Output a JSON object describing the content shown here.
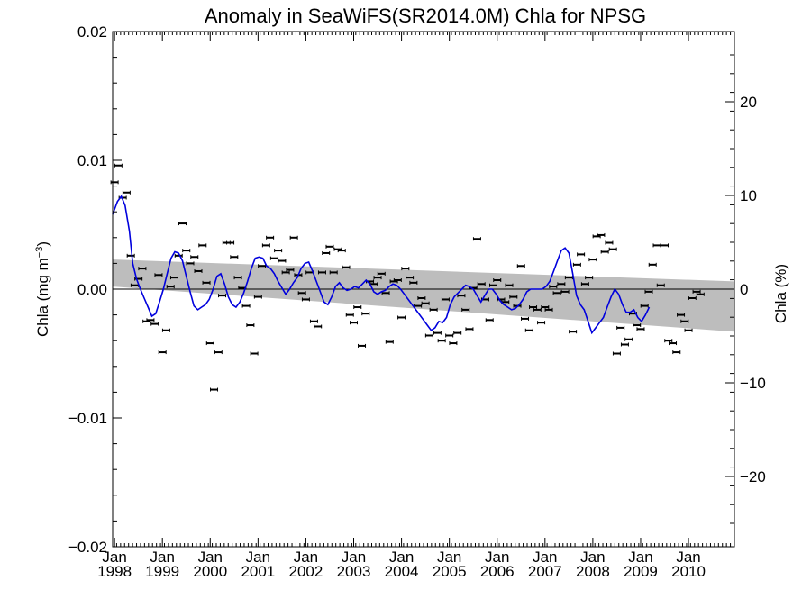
{
  "chart_data": {
    "type": "scatter",
    "title": "Anomaly in SeaWiFS(SR2014.0M) Chla for NPSG",
    "ylabel_left": {
      "base": "Chla (mg m",
      "sup": "−3",
      "close": ")"
    },
    "ylabel_right": "Chla (%)",
    "xlim": [
      1998.0,
      2011.0
    ],
    "ylim": [
      -0.02,
      0.02
    ],
    "ylim_right": [
      -27.5,
      27.5
    ],
    "left_ticks": [
      {
        "value": 0.02,
        "label": "0.02"
      },
      {
        "value": 0.01,
        "label": "0.01"
      },
      {
        "value": 0.0,
        "label": "0.00"
      },
      {
        "value": -0.01,
        "label": "−0.01"
      },
      {
        "value": -0.02,
        "label": "−0.02"
      }
    ],
    "right_ticks": [
      {
        "value": 20,
        "label": "20"
      },
      {
        "value": 10,
        "label": "10"
      },
      {
        "value": 0,
        "label": "0"
      },
      {
        "value": -10,
        "label": "−10"
      },
      {
        "value": -20,
        "label": "−20"
      }
    ],
    "x_ticks": [
      {
        "value": 1998.04,
        "month": "Jan",
        "year": "1998"
      },
      {
        "value": 1999.04,
        "month": "Jan",
        "year": "1999"
      },
      {
        "value": 2000.04,
        "month": "Jan",
        "year": "2000"
      },
      {
        "value": 2001.04,
        "month": "Jan",
        "year": "2001"
      },
      {
        "value": 2002.04,
        "month": "Jan",
        "year": "2002"
      },
      {
        "value": 2003.04,
        "month": "Jan",
        "year": "2003"
      },
      {
        "value": 2004.04,
        "month": "Jan",
        "year": "2004"
      },
      {
        "value": 2005.04,
        "month": "Jan",
        "year": "2005"
      },
      {
        "value": 2006.04,
        "month": "Jan",
        "year": "2006"
      },
      {
        "value": 2007.04,
        "month": "Jan",
        "year": "2007"
      },
      {
        "value": 2008.04,
        "month": "Jan",
        "year": "2008"
      },
      {
        "value": 2009.04,
        "month": "Jan",
        "year": "2009"
      },
      {
        "value": 2010.04,
        "month": "Jan",
        "year": "2010"
      }
    ],
    "zero_line": 0.0,
    "trend_band": {
      "x": [
        1998.0,
        2011.0
      ],
      "upper": [
        0.0023,
        0.0006
      ],
      "lower": [
        0.0002,
        -0.0033
      ]
    },
    "points": [
      [
        1998.04,
        0.0083
      ],
      [
        1998.12,
        0.0096
      ],
      [
        1998.21,
        0.0071
      ],
      [
        1998.29,
        0.0075
      ],
      [
        1998.38,
        0.0026
      ],
      [
        1998.46,
        0.0003
      ],
      [
        1998.54,
        0.0008
      ],
      [
        1998.62,
        0.0016
      ],
      [
        1998.71,
        -0.0025
      ],
      [
        1998.79,
        -0.0024
      ],
      [
        1998.88,
        -0.0027
      ],
      [
        1998.96,
        0.0011
      ],
      [
        1999.04,
        -0.0049
      ],
      [
        1999.12,
        -0.0032
      ],
      [
        1999.21,
        0.0002
      ],
      [
        1999.29,
        0.0009
      ],
      [
        1999.38,
        0.0026
      ],
      [
        1999.46,
        0.0051
      ],
      [
        1999.54,
        0.003
      ],
      [
        1999.62,
        0.002
      ],
      [
        1999.71,
        0.0025
      ],
      [
        1999.79,
        0.0014
      ],
      [
        1999.88,
        0.0034
      ],
      [
        1999.96,
        0.0005
      ],
      [
        2000.04,
        -0.0042
      ],
      [
        2000.12,
        -0.0078
      ],
      [
        2000.21,
        -0.0049
      ],
      [
        2000.29,
        -0.0005
      ],
      [
        2000.38,
        0.0036
      ],
      [
        2000.46,
        0.0036
      ],
      [
        2000.54,
        0.0025
      ],
      [
        2000.62,
        0.0009
      ],
      [
        2000.71,
        0.0001
      ],
      [
        2000.79,
        -0.0013
      ],
      [
        2000.88,
        -0.0028
      ],
      [
        2000.96,
        -0.005
      ],
      [
        2001.04,
        -0.0006
      ],
      [
        2001.12,
        0.0018
      ],
      [
        2001.21,
        0.0034
      ],
      [
        2001.29,
        0.004
      ],
      [
        2001.38,
        0.0024
      ],
      [
        2001.46,
        0.003
      ],
      [
        2001.54,
        0.0022
      ],
      [
        2001.62,
        0.0013
      ],
      [
        2001.71,
        0.0015
      ],
      [
        2001.79,
        0.004
      ],
      [
        2001.88,
        0.0011
      ],
      [
        2001.96,
        -0.0003
      ],
      [
        2002.04,
        -0.0008
      ],
      [
        2002.12,
        0.0013
      ],
      [
        2002.21,
        -0.0025
      ],
      [
        2002.29,
        -0.0029
      ],
      [
        2002.38,
        0.0013
      ],
      [
        2002.46,
        0.0028
      ],
      [
        2002.54,
        0.0033
      ],
      [
        2002.62,
        0.0013
      ],
      [
        2002.71,
        0.0031
      ],
      [
        2002.79,
        0.003
      ],
      [
        2002.88,
        0.0017
      ],
      [
        2002.96,
        -0.002
      ],
      [
        2003.04,
        -0.0026
      ],
      [
        2003.12,
        -0.0014
      ],
      [
        2003.21,
        -0.0044
      ],
      [
        2003.29,
        -0.0019
      ],
      [
        2003.38,
        0.0006
      ],
      [
        2003.46,
        0.0004
      ],
      [
        2003.54,
        0.0009
      ],
      [
        2003.62,
        0.0012
      ],
      [
        2003.71,
        -0.0003
      ],
      [
        2003.79,
        -0.0041
      ],
      [
        2003.88,
        0.0006
      ],
      [
        2003.96,
        0.0007
      ],
      [
        2004.04,
        -0.0022
      ],
      [
        2004.12,
        0.0016
      ],
      [
        2004.21,
        0.0009
      ],
      [
        2004.29,
        0.0005
      ],
      [
        2004.38,
        -0.0013
      ],
      [
        2004.46,
        -0.0007
      ],
      [
        2004.54,
        -0.0011
      ],
      [
        2004.62,
        -0.0036
      ],
      [
        2004.71,
        -0.0016
      ],
      [
        2004.79,
        -0.0034
      ],
      [
        2004.88,
        -0.004
      ],
      [
        2004.96,
        -0.0008
      ],
      [
        2005.04,
        -0.0036
      ],
      [
        2005.12,
        -0.0042
      ],
      [
        2005.21,
        -0.0034
      ],
      [
        2005.29,
        -0.0005
      ],
      [
        2005.38,
        -0.0016
      ],
      [
        2005.46,
        -0.0031
      ],
      [
        2005.54,
        0.0001
      ],
      [
        2005.62,
        0.0039
      ],
      [
        2005.71,
        0.0004
      ],
      [
        2005.79,
        -0.0008
      ],
      [
        2005.88,
        -0.0024
      ],
      [
        2005.96,
        0.0003
      ],
      [
        2006.04,
        0.0007
      ],
      [
        2006.12,
        -0.0008
      ],
      [
        2006.21,
        -0.001
      ],
      [
        2006.29,
        0.0003
      ],
      [
        2006.38,
        -0.0006
      ],
      [
        2006.46,
        -0.0013
      ],
      [
        2006.54,
        0.0018
      ],
      [
        2006.62,
        -0.0023
      ],
      [
        2006.71,
        -0.0032
      ],
      [
        2006.79,
        -0.0014
      ],
      [
        2006.88,
        -0.0016
      ],
      [
        2006.96,
        -0.0026
      ],
      [
        2007.04,
        -0.0014
      ],
      [
        2007.12,
        -0.0016
      ],
      [
        2007.21,
        0.0002
      ],
      [
        2007.29,
        -0.0003
      ],
      [
        2007.38,
        0.0004
      ],
      [
        2007.46,
        -0.0002
      ],
      [
        2007.54,
        0.0009
      ],
      [
        2007.62,
        -0.0033
      ],
      [
        2007.71,
        0.0019
      ],
      [
        2007.79,
        0.0027
      ],
      [
        2007.88,
        0.0004
      ],
      [
        2007.96,
        0.0009
      ],
      [
        2008.04,
        0.0023
      ],
      [
        2008.12,
        0.0041
      ],
      [
        2008.21,
        0.0042
      ],
      [
        2008.29,
        0.0029
      ],
      [
        2008.38,
        0.0036
      ],
      [
        2008.46,
        0.0031
      ],
      [
        2008.54,
        -0.005
      ],
      [
        2008.62,
        -0.003
      ],
      [
        2008.71,
        -0.0043
      ],
      [
        2008.79,
        -0.0039
      ],
      [
        2008.88,
        -0.0019
      ],
      [
        2008.96,
        -0.0028
      ],
      [
        2009.04,
        -0.0031
      ],
      [
        2009.12,
        -0.0013
      ],
      [
        2009.21,
        -0.0002
      ],
      [
        2009.29,
        0.0019
      ],
      [
        2009.38,
        0.0034
      ],
      [
        2009.46,
        0.0003
      ],
      [
        2009.54,
        0.0034
      ],
      [
        2009.62,
        -0.004
      ],
      [
        2009.71,
        -0.0042
      ],
      [
        2009.79,
        -0.0049
      ],
      [
        2009.88,
        -0.002
      ],
      [
        2009.96,
        -0.0025
      ],
      [
        2010.04,
        -0.0032
      ],
      [
        2010.12,
        -0.0007
      ],
      [
        2010.21,
        -0.0002
      ],
      [
        2010.29,
        -0.0004
      ]
    ],
    "smooth_line": [
      [
        1998.0,
        0.0058
      ],
      [
        1998.1,
        0.0068
      ],
      [
        1998.18,
        0.0072
      ],
      [
        1998.26,
        0.0065
      ],
      [
        1998.35,
        0.0045
      ],
      [
        1998.42,
        0.002
      ],
      [
        1998.5,
        0.0008
      ],
      [
        1998.58,
        0.0
      ],
      [
        1998.66,
        -0.0007
      ],
      [
        1998.74,
        -0.0014
      ],
      [
        1998.82,
        -0.0021
      ],
      [
        1998.9,
        -0.0019
      ],
      [
        1998.98,
        -0.001
      ],
      [
        1999.06,
        0.0
      ],
      [
        1999.14,
        0.0012
      ],
      [
        1999.22,
        0.0024
      ],
      [
        1999.3,
        0.0029
      ],
      [
        1999.38,
        0.0028
      ],
      [
        1999.46,
        0.0022
      ],
      [
        1999.54,
        0.001
      ],
      [
        1999.62,
        -0.0002
      ],
      [
        1999.7,
        -0.0013
      ],
      [
        1999.78,
        -0.0016
      ],
      [
        1999.86,
        -0.0014
      ],
      [
        1999.94,
        -0.0012
      ],
      [
        2000.02,
        -0.0008
      ],
      [
        2000.1,
        0.0
      ],
      [
        2000.18,
        0.001
      ],
      [
        2000.26,
        0.0012
      ],
      [
        2000.34,
        0.0004
      ],
      [
        2000.42,
        -0.0006
      ],
      [
        2000.5,
        -0.0012
      ],
      [
        2000.58,
        -0.0014
      ],
      [
        2000.66,
        -0.001
      ],
      [
        2000.74,
        -0.0003
      ],
      [
        2000.82,
        0.0006
      ],
      [
        2000.9,
        0.0016
      ],
      [
        2000.98,
        0.0024
      ],
      [
        2001.06,
        0.0025
      ],
      [
        2001.14,
        0.0024
      ],
      [
        2001.22,
        0.0018
      ],
      [
        2001.3,
        0.0016
      ],
      [
        2001.38,
        0.0012
      ],
      [
        2001.46,
        0.0006
      ],
      [
        2001.54,
        0.0001
      ],
      [
        2001.62,
        -0.0004
      ],
      [
        2001.7,
        0.0
      ],
      [
        2001.78,
        0.0005
      ],
      [
        2001.86,
        0.0009
      ],
      [
        2001.94,
        0.0016
      ],
      [
        2002.02,
        0.002
      ],
      [
        2002.1,
        0.0021
      ],
      [
        2002.18,
        0.0014
      ],
      [
        2002.26,
        0.0006
      ],
      [
        2002.34,
        -0.0002
      ],
      [
        2002.42,
        -0.001
      ],
      [
        2002.5,
        -0.0012
      ],
      [
        2002.58,
        -0.0006
      ],
      [
        2002.66,
        0.0002
      ],
      [
        2002.74,
        0.0005
      ],
      [
        2002.82,
        0.0001
      ],
      [
        2002.9,
        -0.0001
      ],
      [
        2002.98,
        0.0
      ],
      [
        2003.06,
        0.0002
      ],
      [
        2003.14,
        0.0001
      ],
      [
        2003.22,
        0.0004
      ],
      [
        2003.3,
        0.0007
      ],
      [
        2003.38,
        0.0004
      ],
      [
        2003.46,
        -0.0002
      ],
      [
        2003.54,
        -0.0004
      ],
      [
        2003.62,
        -0.0002
      ],
      [
        2003.7,
        -0.0001
      ],
      [
        2003.78,
        0.0002
      ],
      [
        2003.86,
        0.0004
      ],
      [
        2003.94,
        0.0003
      ],
      [
        2004.02,
        0.0
      ],
      [
        2004.1,
        -0.0004
      ],
      [
        2004.18,
        -0.0008
      ],
      [
        2004.26,
        -0.0012
      ],
      [
        2004.34,
        -0.0016
      ],
      [
        2004.42,
        -0.002
      ],
      [
        2004.5,
        -0.0024
      ],
      [
        2004.58,
        -0.0028
      ],
      [
        2004.66,
        -0.0032
      ],
      [
        2004.74,
        -0.003
      ],
      [
        2004.82,
        -0.0025
      ],
      [
        2004.9,
        -0.0026
      ],
      [
        2004.98,
        -0.0022
      ],
      [
        2005.06,
        -0.0012
      ],
      [
        2005.14,
        -0.0006
      ],
      [
        2005.22,
        -0.0003
      ],
      [
        2005.3,
        0.0
      ],
      [
        2005.38,
        0.0003
      ],
      [
        2005.46,
        0.0002
      ],
      [
        2005.54,
        0.0
      ],
      [
        2005.62,
        -0.0005
      ],
      [
        2005.7,
        -0.001
      ],
      [
        2005.78,
        -0.0005
      ],
      [
        2005.86,
        0.0
      ],
      [
        2005.94,
        0.0
      ],
      [
        2006.02,
        -0.0004
      ],
      [
        2006.1,
        -0.0009
      ],
      [
        2006.18,
        -0.0012
      ],
      [
        2006.26,
        -0.0014
      ],
      [
        2006.34,
        -0.0016
      ],
      [
        2006.42,
        -0.0015
      ],
      [
        2006.5,
        -0.0012
      ],
      [
        2006.58,
        -0.0008
      ],
      [
        2006.66,
        -0.0002
      ],
      [
        2006.74,
        0.0
      ],
      [
        2006.82,
        0.0
      ],
      [
        2006.9,
        0.0
      ],
      [
        2006.98,
        0.0
      ],
      [
        2007.06,
        0.0002
      ],
      [
        2007.14,
        0.0006
      ],
      [
        2007.22,
        0.0014
      ],
      [
        2007.3,
        0.0022
      ],
      [
        2007.38,
        0.003
      ],
      [
        2007.46,
        0.0032
      ],
      [
        2007.54,
        0.0028
      ],
      [
        2007.62,
        0.0012
      ],
      [
        2007.7,
        -0.0005
      ],
      [
        2007.78,
        -0.0012
      ],
      [
        2007.86,
        -0.0016
      ],
      [
        2007.94,
        -0.0025
      ],
      [
        2008.02,
        -0.0034
      ],
      [
        2008.1,
        -0.003
      ],
      [
        2008.18,
        -0.0026
      ],
      [
        2008.26,
        -0.0022
      ],
      [
        2008.34,
        -0.0014
      ],
      [
        2008.42,
        -0.0006
      ],
      [
        2008.5,
        0.0
      ],
      [
        2008.58,
        -0.0004
      ],
      [
        2008.66,
        -0.0012
      ],
      [
        2008.74,
        -0.0018
      ],
      [
        2008.82,
        -0.0018
      ],
      [
        2008.9,
        -0.0016
      ],
      [
        2008.98,
        -0.0022
      ],
      [
        2009.06,
        -0.0025
      ],
      [
        2009.14,
        -0.002
      ],
      [
        2009.22,
        -0.0014
      ]
    ]
  }
}
